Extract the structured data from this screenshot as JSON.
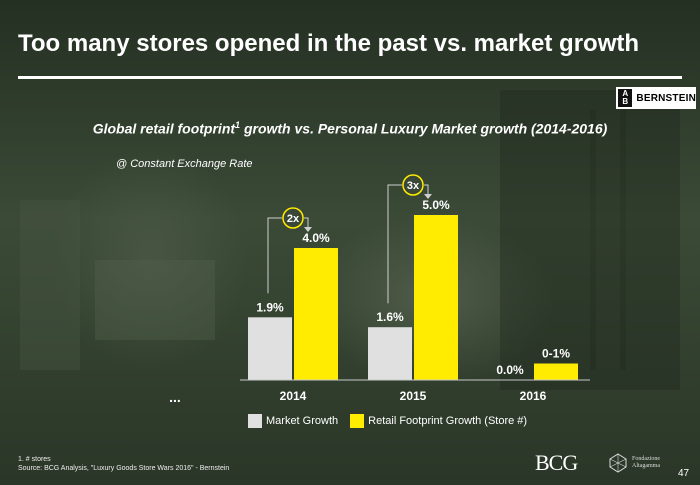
{
  "slide": {
    "title": "Too many stores opened in the past vs. market growth",
    "subtitle_main": "Global retail footprint",
    "subtitle_sup": "1",
    "subtitle_rest": " growth vs. Personal Luxury Market growth (2014-2016)",
    "note": "@ Constant Exchange Rate",
    "ellipsis": "...",
    "footnote_line1": "1. # stores",
    "footnote_line2": "Source: BCG Analysis, \"Luxury Goods Store Wars 2016\" - Bernstein",
    "page_number": "47"
  },
  "logos": {
    "bernstein_mark_top": "A",
    "bernstein_mark_bottom": "B",
    "bernstein_text": "BERNSTEIN",
    "bcg_text": "BCG",
    "lux_line1": "Fondazione",
    "lux_line2": "Altagamma"
  },
  "chart_data": {
    "type": "bar",
    "title": "Global retail footprint growth vs. Personal Luxury Market growth (2014-2016)",
    "categories": [
      "2014",
      "2015",
      "2016"
    ],
    "series": [
      {
        "name": "Market Growth",
        "values": [
          1.9,
          1.6,
          0.0
        ],
        "labels": [
          "1.9%",
          "1.6%",
          "0.0%"
        ],
        "color": "#e0e0e0"
      },
      {
        "name": "Retail  Footprint Growth (Store #)",
        "values": [
          4.0,
          5.0,
          0.5
        ],
        "labels": [
          "4.0%",
          "5.0%",
          "0-1%"
        ],
        "color": "#ffec00"
      }
    ],
    "ratio_annotations": [
      "2x",
      "3x"
    ],
    "ylim": [
      0,
      5.5
    ],
    "xlabel": "",
    "ylabel": ""
  }
}
